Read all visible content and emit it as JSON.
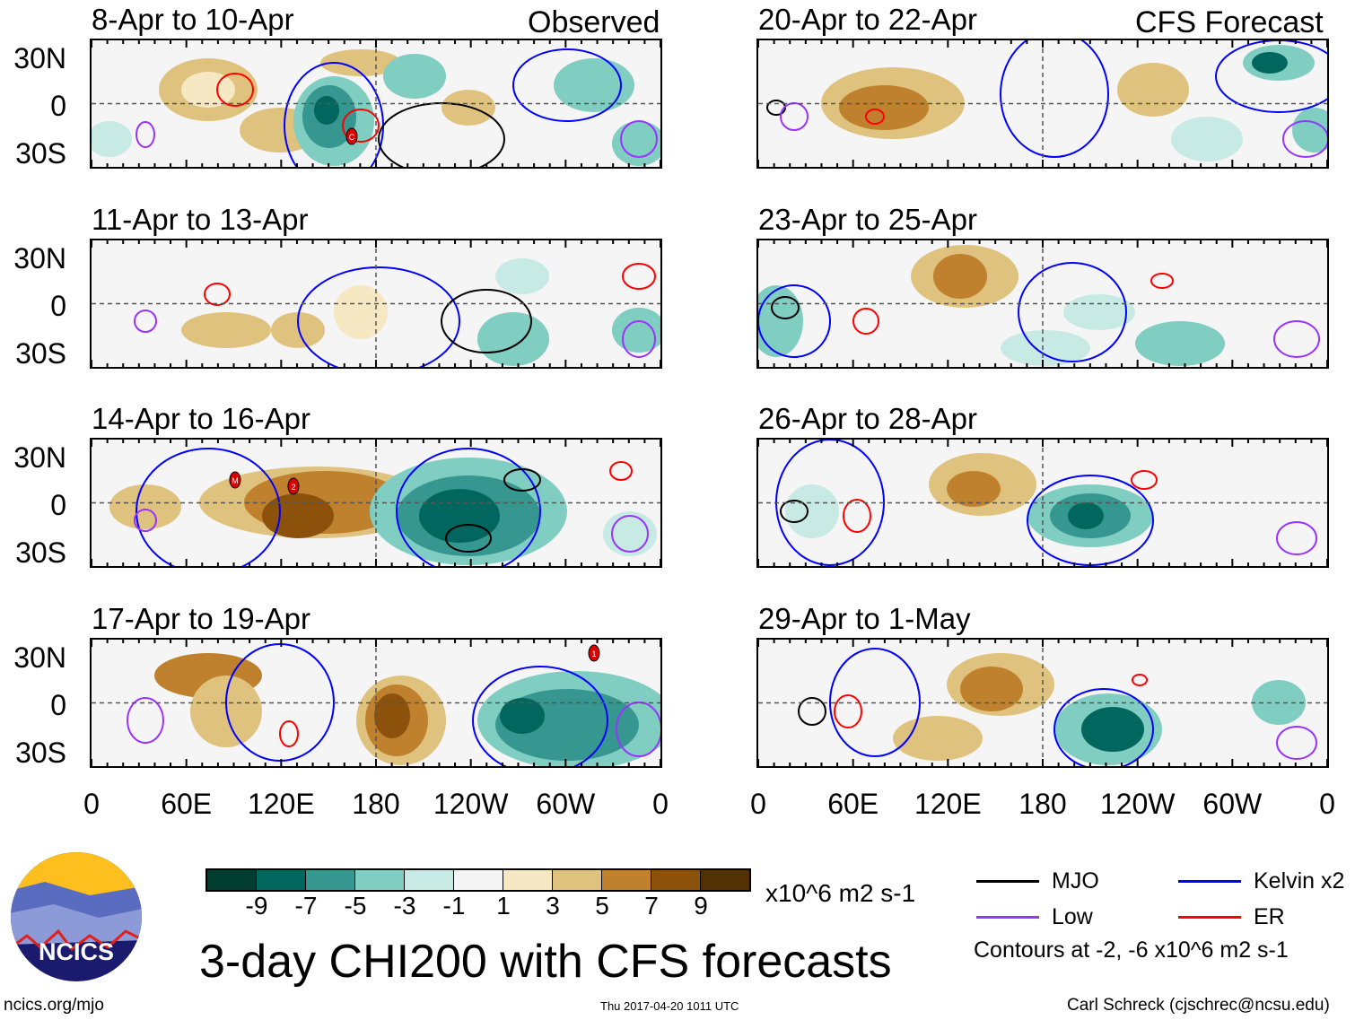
{
  "title": "3-day CHI200 with CFS forecasts",
  "footer": {
    "left": "ncics.org/mjo",
    "center": "Thu 2017-04-20 1011 UTC",
    "right": "Carl Schreck (cjschrec@ncsu.edu)"
  },
  "logo_text": "NCICS",
  "column_labels": {
    "observed": "Observed",
    "forecast": "CFS Forecast"
  },
  "chart_data": {
    "type": "heatmap",
    "title": "3-day CHI200 with CFS forecasts",
    "variable": "200-hPa velocity potential anomaly (CHI200)",
    "units": "x10^6 m2 s-1",
    "x_ticks": [
      "0",
      "60E",
      "120E",
      "180",
      "120W",
      "60W",
      "0"
    ],
    "y_ticks": [
      "30N",
      "0",
      "30S"
    ],
    "colorbar": {
      "ticks": [
        "-9",
        "-7",
        "-5",
        "-3",
        "-1",
        "1",
        "3",
        "5",
        "7",
        "9"
      ],
      "colors": [
        "#003c30",
        "#01665e",
        "#35978f",
        "#80cdc1",
        "#c7eae5",
        "#f5f5f5",
        "#f6e8c3",
        "#dfc27d",
        "#bf812d",
        "#8c510a",
        "#543005"
      ]
    },
    "panels": [
      {
        "label": "8-Apr to 10-Apr",
        "type": "Observed",
        "storms": [
          "C"
        ]
      },
      {
        "label": "11-Apr to 13-Apr",
        "type": "Observed",
        "storms": []
      },
      {
        "label": "14-Apr to 16-Apr",
        "type": "Observed",
        "storms": [
          "M",
          "2"
        ]
      },
      {
        "label": "17-Apr to 19-Apr",
        "type": "Observed",
        "storms": [
          "1"
        ]
      },
      {
        "label": "20-Apr to 22-Apr",
        "type": "CFS Forecast",
        "storms": []
      },
      {
        "label": "23-Apr to 25-Apr",
        "type": "CFS Forecast",
        "storms": []
      },
      {
        "label": "26-Apr to 28-Apr",
        "type": "CFS Forecast",
        "storms": []
      },
      {
        "label": "29-Apr to 1-May",
        "type": "CFS Forecast",
        "storms": []
      }
    ],
    "legend": [
      {
        "label": "MJO",
        "color": "#000000"
      },
      {
        "label": "Kelvin x2",
        "color": "#0000ff"
      },
      {
        "label": "Low",
        "color": "#9933ff"
      },
      {
        "label": "ER",
        "color": "#ff0000"
      }
    ],
    "contour_note": "Contours at -2, -6 x10^6 m2 s-1"
  }
}
